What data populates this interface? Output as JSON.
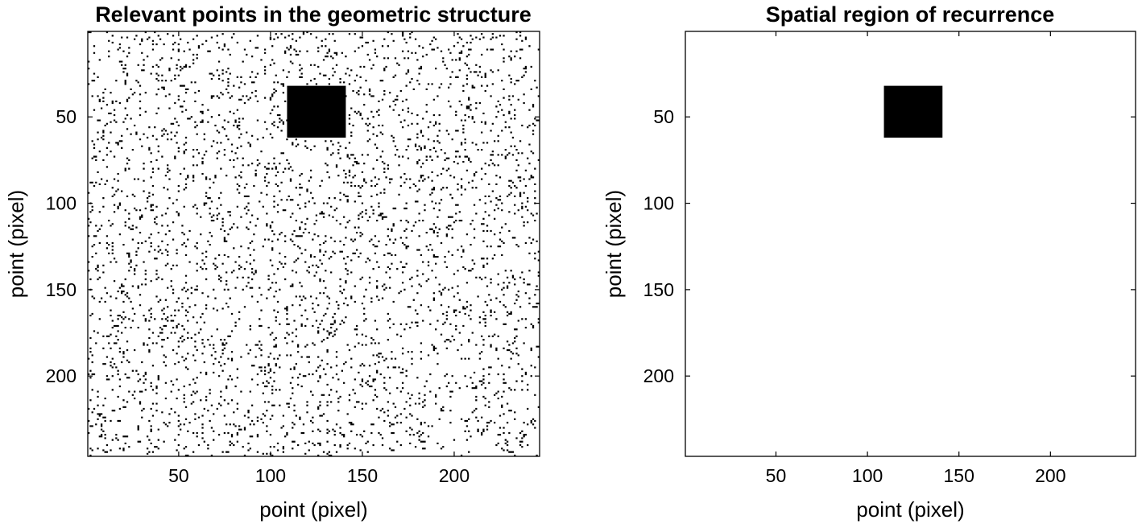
{
  "chart_data": [
    {
      "type": "heatmap",
      "title": "Relevant points in the geometric structure",
      "xlabel": "point (pixel)",
      "ylabel": "point (pixel)",
      "xlim": [
        0.5,
        246.5
      ],
      "ylim": [
        0.5,
        246.5
      ],
      "y_direction": "reversed",
      "xticks": [
        50,
        100,
        150,
        200
      ],
      "yticks": [
        50,
        100,
        150,
        200
      ],
      "colormap": [
        "#ffffff",
        "#000000"
      ],
      "grid": false,
      "legend": "none",
      "content": {
        "scattered_points_density": 0.06,
        "solid_block": {
          "x": [
            109,
            141
          ],
          "y": [
            32,
            62
          ]
        }
      }
    },
    {
      "type": "heatmap",
      "title": "Spatial region of recurrence",
      "xlabel": "point (pixel)",
      "ylabel": "point (pixel)",
      "xlim": [
        0.5,
        246.5
      ],
      "ylim": [
        0.5,
        246.5
      ],
      "y_direction": "reversed",
      "xticks": [
        50,
        100,
        150,
        200
      ],
      "yticks": [
        50,
        100,
        150,
        200
      ],
      "colormap": [
        "#ffffff",
        "#000000"
      ],
      "grid": false,
      "legend": "none",
      "content": {
        "scattered_points_density": 0,
        "solid_block": {
          "x": [
            109,
            141
          ],
          "y": [
            32,
            62
          ]
        }
      }
    }
  ]
}
